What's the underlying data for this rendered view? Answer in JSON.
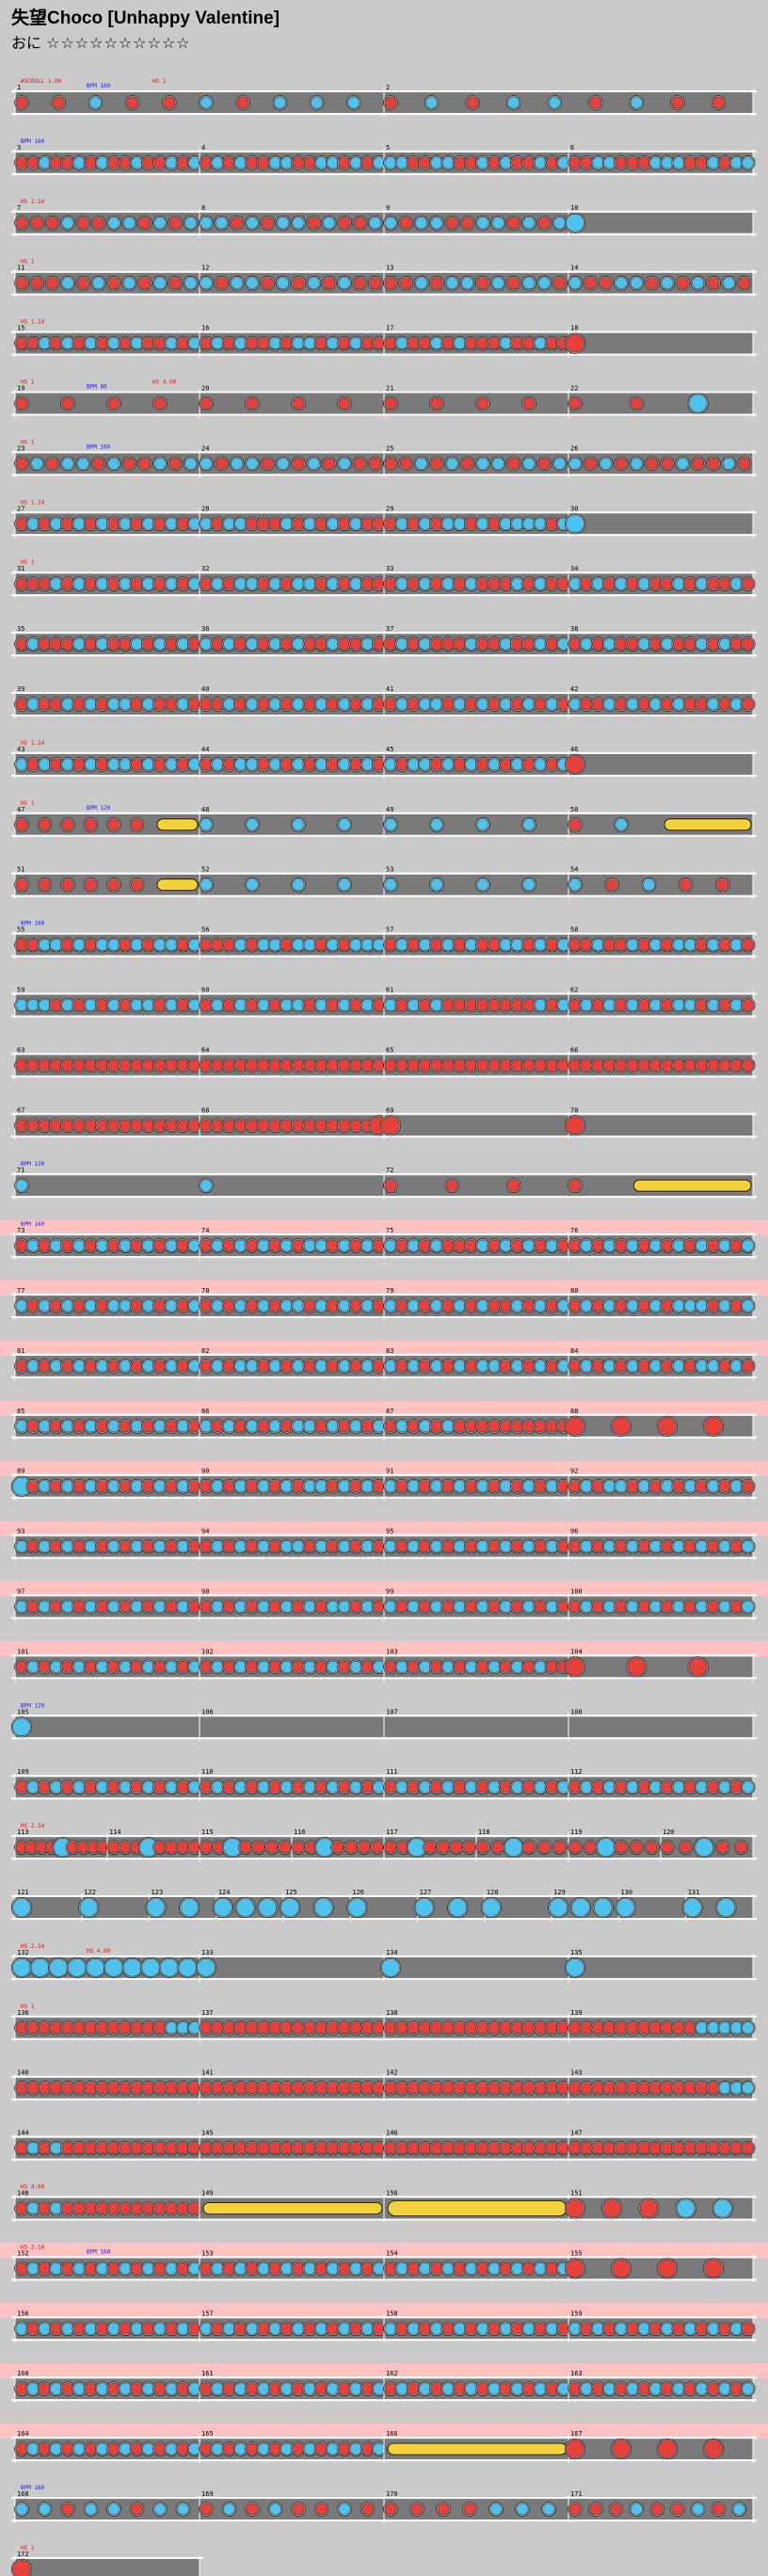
{
  "song": {
    "title": "失望Choco [Unhappy Valentine]",
    "difficulty_label": "おに",
    "difficulty_stars": "☆☆☆☆☆☆☆☆☆☆"
  },
  "colors": {
    "background": "#cacaca",
    "lane": "#7a7a7a",
    "lane_border": "#ffffff",
    "gogo_highlight": "#ffc2c2",
    "don": "#e8413b",
    "ka": "#4fc2ee",
    "roll_yellow": "#f3d23c",
    "event_red": "#d01818",
    "event_blue": "#1c1cd0"
  },
  "chart_data": {
    "type": "taiko-chart",
    "bars_per_row": 4,
    "notes_legend": {
      "d": "don",
      "k": "ka",
      "D": "big don",
      "K": "big ka",
      "r": "drumroll",
      "R": "big drumroll",
      "b": "balloon"
    },
    "rows": [
      {
        "bars": [
          {
            "num": "1",
            "notes": "ddkddkdkkk"
          },
          {
            "num": "2",
            "notes": "dkdkkdkdd"
          }
        ],
        "events": [
          "#SCROLL 1.00",
          "BPM 160",
          "HS 1"
        ]
      },
      {
        "bars": [
          {
            "num": "3",
            "notes": "ddkddkdkddkddkdk"
          },
          {
            "num": "4",
            "notes": "dkdkddkkddkkdkdk"
          },
          {
            "num": "5",
            "notes": "kkddkkddkdkddkdk"
          },
          {
            "num": "6",
            "notes": "ddkkdddkkkddkdkk"
          }
        ],
        "events": [
          "BPM 160"
        ]
      },
      {
        "bars": [
          {
            "num": "7",
            "notes": "dddkddkkdkdk"
          },
          {
            "num": "8",
            "notes": "kkdkdkkdkddk"
          },
          {
            "num": "9",
            "notes": "kdkkddkkdkdk"
          },
          {
            "num": "10",
            "notes": "K"
          }
        ],
        "events": [
          "HS 1.14"
        ]
      },
      {
        "bars": [
          {
            "num": "11",
            "notes": "dddkdkdkdkdk"
          },
          {
            "num": "12",
            "notes": "kdkkdkdkdkdd"
          },
          {
            "num": "13",
            "notes": "ddkdkkdkdkkd"
          },
          {
            "num": "14",
            "notes": "kddkkdkdkdkd"
          }
        ],
        "events": [
          "HS 1"
        ]
      },
      {
        "bars": [
          {
            "num": "15",
            "notes": "ddkdkdkdkdkddkdk"
          },
          {
            "num": "16",
            "notes": "dkdkddkdkkdkdkdd"
          },
          {
            "num": "17",
            "notes": "dkddkdkdddkddkdd"
          },
          {
            "num": "18",
            "notes": "D"
          }
        ],
        "events": [
          "HS 1.14"
        ]
      },
      {
        "bars": [
          {
            "num": "19",
            "notes": "dddd"
          },
          {
            "num": "20",
            "notes": "dddd"
          },
          {
            "num": "21",
            "notes": "dddd"
          },
          {
            "num": "22",
            "notes": "ddK"
          }
        ],
        "events": [
          "HS 1",
          "BPM 80",
          "HS 4.00"
        ]
      },
      {
        "bars": [
          {
            "num": "23",
            "notes": "dkdkkdkddkdk"
          },
          {
            "num": "24",
            "notes": "kdkkdkdkdkdd"
          },
          {
            "num": "25",
            "notes": "ddkdkdkkdkdk"
          },
          {
            "num": "26",
            "notes": "kdkdkddkddkd"
          }
        ],
        "events": [
          "HS 1",
          "BPM 160"
        ]
      },
      {
        "bars": [
          {
            "num": "27",
            "notes": "dkdkdkdkdkdkdkdk"
          },
          {
            "num": "28",
            "notes": "kdkkdddkdkdkdkdd"
          },
          {
            "num": "29",
            "notes": "dkdkdkkdkdkkkkdk"
          },
          {
            "num": "30",
            "notes": "K"
          }
        ],
        "events": [
          "HS 1.14"
        ]
      },
      {
        "bars": [
          {
            "num": "31",
            "notes": "dddkdkdkdkdkdkdk"
          },
          {
            "num": "32",
            "notes": "dkdkkdkdkkdkdkdd"
          },
          {
            "num": "33",
            "notes": "dkdkdkdkdddkdkdd"
          },
          {
            "num": "34",
            "notes": "kdkdkdkddkdkddkd"
          }
        ],
        "events": [
          "HS 1"
        ]
      },
      {
        "bars": [
          {
            "num": "35",
            "notes": "dkdddkdkddkdkdkd"
          },
          {
            "num": "36",
            "notes": "kdkdkdkdkddkddkd"
          },
          {
            "num": "37",
            "notes": "dkdkdddkddkddkdk"
          },
          {
            "num": "38",
            "notes": "dkdkddkdkddkdkdd"
          }
        ],
        "events": []
      },
      {
        "bars": [
          {
            "num": "39",
            "notes": "dkddkdkdkkdkddkd"
          },
          {
            "num": "40",
            "notes": "ddkdkdkdkdkdkdkd"
          },
          {
            "num": "41",
            "notes": "dkdkkdkdkdkdkdkd"
          },
          {
            "num": "42",
            "notes": "kddkdkdkdkddkdkd"
          }
        ],
        "events": []
      },
      {
        "bars": [
          {
            "num": "43",
            "notes": "kdkdkdkdkkdkdkdk"
          },
          {
            "num": "44",
            "notes": "dkdkkdkdkdkdkdkd"
          },
          {
            "num": "45",
            "notes": "kdkkdkdkdkdkdkdk"
          },
          {
            "num": "46",
            "notes": "D"
          }
        ],
        "events": [
          "HS 1.14"
        ]
      },
      {
        "bars": [
          {
            "num": "47",
            "notes": "ddddddrr"
          },
          {
            "num": "48",
            "notes": "kkkk"
          },
          {
            "num": "49",
            "notes": "kkkk"
          },
          {
            "num": "50",
            "notes": "dkrr"
          }
        ],
        "events": [
          "HS 1",
          "BPM 120"
        ]
      },
      {
        "bars": [
          {
            "num": "51",
            "notes": "ddddddrr"
          },
          {
            "num": "52",
            "notes": "kkkk"
          },
          {
            "num": "53",
            "notes": "kkkk"
          },
          {
            "num": "54",
            "notes": "kdkdd"
          }
        ],
        "events": []
      },
      {
        "bars": [
          {
            "num": "55",
            "notes": "ddkkdkdkkdkdkkdk"
          },
          {
            "num": "56",
            "notes": "dddkdkkdkkdkdkkk"
          },
          {
            "num": "57",
            "notes": "dkdkdkdkddkkdkdk"
          },
          {
            "num": "58",
            "notes": "ddkddkdkdkkdkdkd"
          }
        ],
        "events": [
          "BPM 160"
        ]
      },
      {
        "bars": [
          {
            "num": "59",
            "notes": "kkkdkdkdkdkkdkdk"
          },
          {
            "num": "60",
            "notes": "dkdkdkdkkdkdkdkd"
          },
          {
            "num": "61",
            "notes": "kdkdkddddddddkdk"
          },
          {
            "num": "62",
            "notes": "dkdkdkdkdkkdkdkd"
          }
        ],
        "events": []
      },
      {
        "bars": [
          {
            "num": "63",
            "notes": "dddddddddddddddd"
          },
          {
            "num": "64",
            "notes": "dddddddddddddddd"
          },
          {
            "num": "65",
            "notes": "dddddddddddddddd"
          },
          {
            "num": "66",
            "notes": "dddddddddddddddd"
          }
        ],
        "events": []
      },
      {
        "bars": [
          {
            "num": "67",
            "notes": "dddddddddddddddd"
          },
          {
            "num": "68",
            "notes": "dddddddddddddddD"
          },
          {
            "num": "69",
            "notes": "D"
          },
          {
            "num": "70",
            "notes": "D"
          }
        ],
        "events": []
      },
      {
        "bars": [
          {
            "num": "71",
            "notes": "kk"
          },
          {
            "num": "72",
            "notes": "ddddrr"
          }
        ],
        "events": [
          "BPM 120"
        ]
      },
      {
        "bars": [
          {
            "num": "73",
            "notes": "dkdkdkdkdkdkdkdk"
          },
          {
            "num": "74",
            "notes": "dkdkdkdkdkkdkdkd"
          },
          {
            "num": "75",
            "notes": "kdkdkdddkdkdkdkd"
          },
          {
            "num": "76",
            "notes": "dkdkdkdkdkdkdkdk"
          }
        ],
        "events": [
          "BPM 160"
        ],
        "gogo": true
      },
      {
        "bars": [
          {
            "num": "77",
            "notes": "kdkdkdkdkkdkdkdk"
          },
          {
            "num": "78",
            "notes": "dkdkdkdkkdkdkdkd"
          },
          {
            "num": "79",
            "notes": "kdkdkdkdkddkdkdk"
          },
          {
            "num": "80",
            "notes": "dkdkdkdkdkkkdkdk"
          }
        ],
        "events": [],
        "gogo": true
      },
      {
        "bars": [
          {
            "num": "81",
            "notes": "dkdkdkdkdkdkdkdk"
          },
          {
            "num": "82",
            "notes": "dkdkkdkdkdkdkdkd"
          },
          {
            "num": "83",
            "notes": "kdkdkdkdkkdkdkdk"
          },
          {
            "num": "84",
            "notes": "dkdkdkdkdkdkkdkd"
          }
        ],
        "events": [],
        "gogo": true
      },
      {
        "bars": [
          {
            "num": "85",
            "notes": "kdkdkdkdkdkdkdkd"
          },
          {
            "num": "86",
            "notes": "kdkdkdkdkkdkdkdk"
          },
          {
            "num": "87",
            "notes": "dkdkdkdddddddddd"
          },
          {
            "num": "88",
            "notes": "DDDD"
          }
        ],
        "events": [],
        "gogo": true
      },
      {
        "bars": [
          {
            "num": "89",
            "notes": "Kdkdkdkdkdkdkdkd"
          },
          {
            "num": "90",
            "notes": "dkdkdkdkdkkdkdkd"
          },
          {
            "num": "91",
            "notes": "kdkdkdkdkdkdkdkd"
          },
          {
            "num": "92",
            "notes": "dkdkkdkdkdkdkdkd"
          }
        ],
        "events": [],
        "gogo": true
      },
      {
        "bars": [
          {
            "num": "93",
            "notes": "kdkdkdkdkdkdkdkd"
          },
          {
            "num": "94",
            "notes": "dkdkdkdkkdkdkdkd"
          },
          {
            "num": "95",
            "notes": "kdkdkdkdkdkdkdkd"
          },
          {
            "num": "96",
            "notes": "dkdkdkdkdkdkdkdk"
          }
        ],
        "events": [],
        "gogo": true
      },
      {
        "bars": [
          {
            "num": "97",
            "notes": "kdkdkdkdkdkdkdkd"
          },
          {
            "num": "98",
            "notes": "dkdkdkdkdkdkkdkd"
          },
          {
            "num": "99",
            "notes": "kdkdkdkdkdkdkdkd"
          },
          {
            "num": "100",
            "notes": "dkdkdkdkdkdkdkdk"
          }
        ],
        "events": [],
        "gogo": true
      },
      {
        "bars": [
          {
            "num": "101",
            "notes": "dkdkdkdkdkdkdkdk"
          },
          {
            "num": "102",
            "notes": "dkdkdkdkdkdkdkdk"
          },
          {
            "num": "103",
            "notes": "dkdkdkdkdkdkdkdd"
          },
          {
            "num": "104",
            "notes": "DDD"
          }
        ],
        "events": [],
        "gogo": true
      },
      {
        "bars": [
          {
            "num": "105",
            "notes": "K"
          },
          {
            "num": "106",
            "notes": ""
          },
          {
            "num": "107",
            "notes": ""
          },
          {
            "num": "108",
            "notes": ""
          }
        ],
        "events": [
          "BPM 120"
        ]
      },
      {
        "bars": [
          {
            "num": "109",
            "notes": "dkdkdkdkdkdkdkdk"
          },
          {
            "num": "110",
            "notes": "dkdkdkdkdkdkdkdk"
          },
          {
            "num": "111",
            "notes": "dkdkdkdkdkdkdkdk"
          },
          {
            "num": "112",
            "notes": "dkdkdkdkdkdkdkdk"
          }
        ],
        "events": []
      },
      {
        "bars": [
          {
            "num": "113",
            "notes": "ddddKdddd"
          },
          {
            "num": "114",
            "notes": "dddKdddd"
          },
          {
            "num": "115",
            "notes": "ddKdddd"
          },
          {
            "num": "116",
            "notes": "ddKdddd"
          },
          {
            "num": "117",
            "notes": "ddKdddd"
          },
          {
            "num": "118",
            "notes": "ddKddd"
          },
          {
            "num": "119",
            "notes": "ddKddd"
          },
          {
            "num": "120",
            "notes": "ddKdd"
          }
        ],
        "events": [
          "HS 2.14"
        ],
        "dense": true
      },
      {
        "bars": [
          {
            "num": "121",
            "notes": "K"
          },
          {
            "num": "122",
            "notes": "K"
          },
          {
            "num": "123",
            "notes": "KK"
          },
          {
            "num": "124",
            "notes": "KKK"
          },
          {
            "num": "125",
            "notes": "KK"
          },
          {
            "num": "126",
            "notes": "K"
          },
          {
            "num": "127",
            "notes": "KK"
          },
          {
            "num": "128",
            "notes": "K"
          },
          {
            "num": "129",
            "notes": "KKK"
          },
          {
            "num": "130",
            "notes": "K"
          },
          {
            "num": "131",
            "notes": "KK"
          }
        ],
        "events": [],
        "dense": true
      },
      {
        "bars": [
          {
            "num": "132",
            "notes": "KKKKKKKKKK"
          },
          {
            "num": "133",
            "notes": "K"
          },
          {
            "num": "134",
            "notes": "K"
          },
          {
            "num": "135",
            "notes": "K"
          }
        ],
        "events": [
          "HS 2.14",
          "HS 4.00"
        ]
      },
      {
        "bars": [
          {
            "num": "136",
            "notes": "dddddddddddddkkk"
          },
          {
            "num": "137",
            "notes": "dddddddddddddddd"
          },
          {
            "num": "138",
            "notes": "dddddddddddddddd"
          },
          {
            "num": "139",
            "notes": "dddddddddddkkkkk"
          }
        ],
        "events": [
          "HS 1"
        ]
      },
      {
        "bars": [
          {
            "num": "140",
            "notes": "dddddddddddddddd"
          },
          {
            "num": "141",
            "notes": "dddddddddddddddd"
          },
          {
            "num": "142",
            "notes": "dddddddddddddddd"
          },
          {
            "num": "143",
            "notes": "dddddddddddddkkk"
          }
        ],
        "events": []
      },
      {
        "bars": [
          {
            "num": "144",
            "notes": "dkdkdddddddddddd"
          },
          {
            "num": "145",
            "notes": "dddddddddddddddd"
          },
          {
            "num": "146",
            "notes": "dddddddddddddddd"
          },
          {
            "num": "147",
            "notes": "dddddddddddddddd"
          }
        ],
        "events": []
      },
      {
        "bars": [
          {
            "num": "148",
            "notes": "dkdkdddddddddddd"
          },
          {
            "num": "149",
            "notes": "rrrrrrrrrr"
          },
          {
            "num": "150",
            "notes": "RRRRRR"
          },
          {
            "num": "151",
            "notes": "DDDKK"
          }
        ],
        "events": [
          "HS 4.00"
        ]
      },
      {
        "bars": [
          {
            "num": "152",
            "notes": "dkdkdkdkdkdkdkdk"
          },
          {
            "num": "153",
            "notes": "dkdkdkdkdkdkdkdk"
          },
          {
            "num": "154",
            "notes": "dkdkdkdkdkdkdkdk"
          },
          {
            "num": "155",
            "notes": "DDDD"
          }
        ],
        "events": [
          "HS 2.14",
          "BPM 160"
        ],
        "gogo": true
      },
      {
        "bars": [
          {
            "num": "156",
            "notes": "kdkdkdkdkdkdkdkd"
          },
          {
            "num": "157",
            "notes": "kdkdkdkdkdkdkdkd"
          },
          {
            "num": "158",
            "notes": "kdkdkdkdkdkdkdkd"
          },
          {
            "num": "159",
            "notes": "kdkdkdkdkdkdkdkd"
          }
        ],
        "events": [],
        "gogo": true
      },
      {
        "bars": [
          {
            "num": "160",
            "notes": "dkdkdkdkdkdkdkdk"
          },
          {
            "num": "161",
            "notes": "dkdkdkdkdkdkdkdk"
          },
          {
            "num": "162",
            "notes": "dkdkdkdkdkdkdkdk"
          },
          {
            "num": "163",
            "notes": "dkdkdkdkdkdkdkdk"
          }
        ],
        "events": [],
        "gogo": true
      },
      {
        "bars": [
          {
            "num": "164",
            "notes": "dkdkdkdkdkdkdkdk"
          },
          {
            "num": "165",
            "notes": "dkdkdkdkdkdkdkdk"
          },
          {
            "num": "166",
            "notes": "rrrrrrrrrrrrrrr"
          },
          {
            "num": "167",
            "notes": "DDDD"
          }
        ],
        "events": [],
        "gogo": true
      },
      {
        "bars": [
          {
            "num": "168",
            "notes": "kkdkkdkk"
          },
          {
            "num": "169",
            "notes": "dkdkddkd"
          },
          {
            "num": "170",
            "notes": "ddddkkk"
          },
          {
            "num": "171",
            "notes": "dddkddkdk"
          }
        ],
        "events": [
          "BPM 160"
        ]
      },
      {
        "bars": [
          {
            "num": "172",
            "notes": "D"
          }
        ],
        "events": [
          "HS 1"
        ],
        "partial": true
      }
    ]
  }
}
